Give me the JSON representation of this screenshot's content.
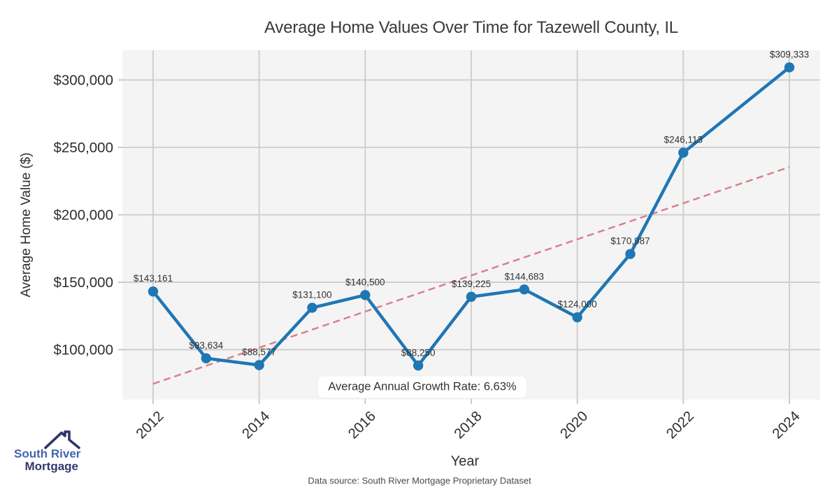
{
  "chart_data": {
    "type": "line",
    "title": "Average Home Values Over Time for Tazewell County, IL",
    "xlabel": "Year",
    "ylabel": "Average Home Value ($)",
    "x": [
      2012,
      2013,
      2014,
      2015,
      2016,
      2017,
      2018,
      2019,
      2020,
      2021,
      2022,
      2024
    ],
    "values": [
      143161,
      93634,
      88577,
      131100,
      140500,
      88250,
      139225,
      144683,
      124000,
      170987,
      246113,
      309333
    ],
    "point_labels": [
      "$143,161",
      "$93,634",
      "$88,577",
      "$131,100",
      "$140,500",
      "$88,250",
      "$139,225",
      "$144,683",
      "$124,000",
      "$170,987",
      "$246,113",
      "$309,333"
    ],
    "xticks": [
      2012,
      2014,
      2016,
      2018,
      2020,
      2022,
      2024
    ],
    "yticks": [
      100000,
      150000,
      200000,
      250000,
      300000
    ],
    "ytick_labels": [
      "$100,000",
      "$150,000",
      "$200,000",
      "$250,000",
      "$300,000"
    ],
    "xlim": [
      2011.42,
      2024.58
    ],
    "ylim": [
      63000,
      322000
    ],
    "grid": true,
    "legend": "none",
    "trend": {
      "style": "dashed",
      "x": [
        2012,
        2024
      ],
      "values": [
        74700,
        235400
      ]
    },
    "annotation": "Average Annual Growth Rate: 6.63%",
    "colors": {
      "line": "#1f77b4",
      "marker": "#1f77b4",
      "trend": "#d9808a",
      "plot_bg": "#f5f4f5",
      "grid": "#cccccc",
      "tick_mark": "#c3c3c3"
    }
  },
  "footer": {
    "text": "Data source: South River Mortgage Proprietary Dataset"
  },
  "logo": {
    "line1": "South River",
    "line2": "Mortgage",
    "color1": "#4365b0",
    "color2": "#323a6e",
    "icon_color": "#2d3668"
  }
}
